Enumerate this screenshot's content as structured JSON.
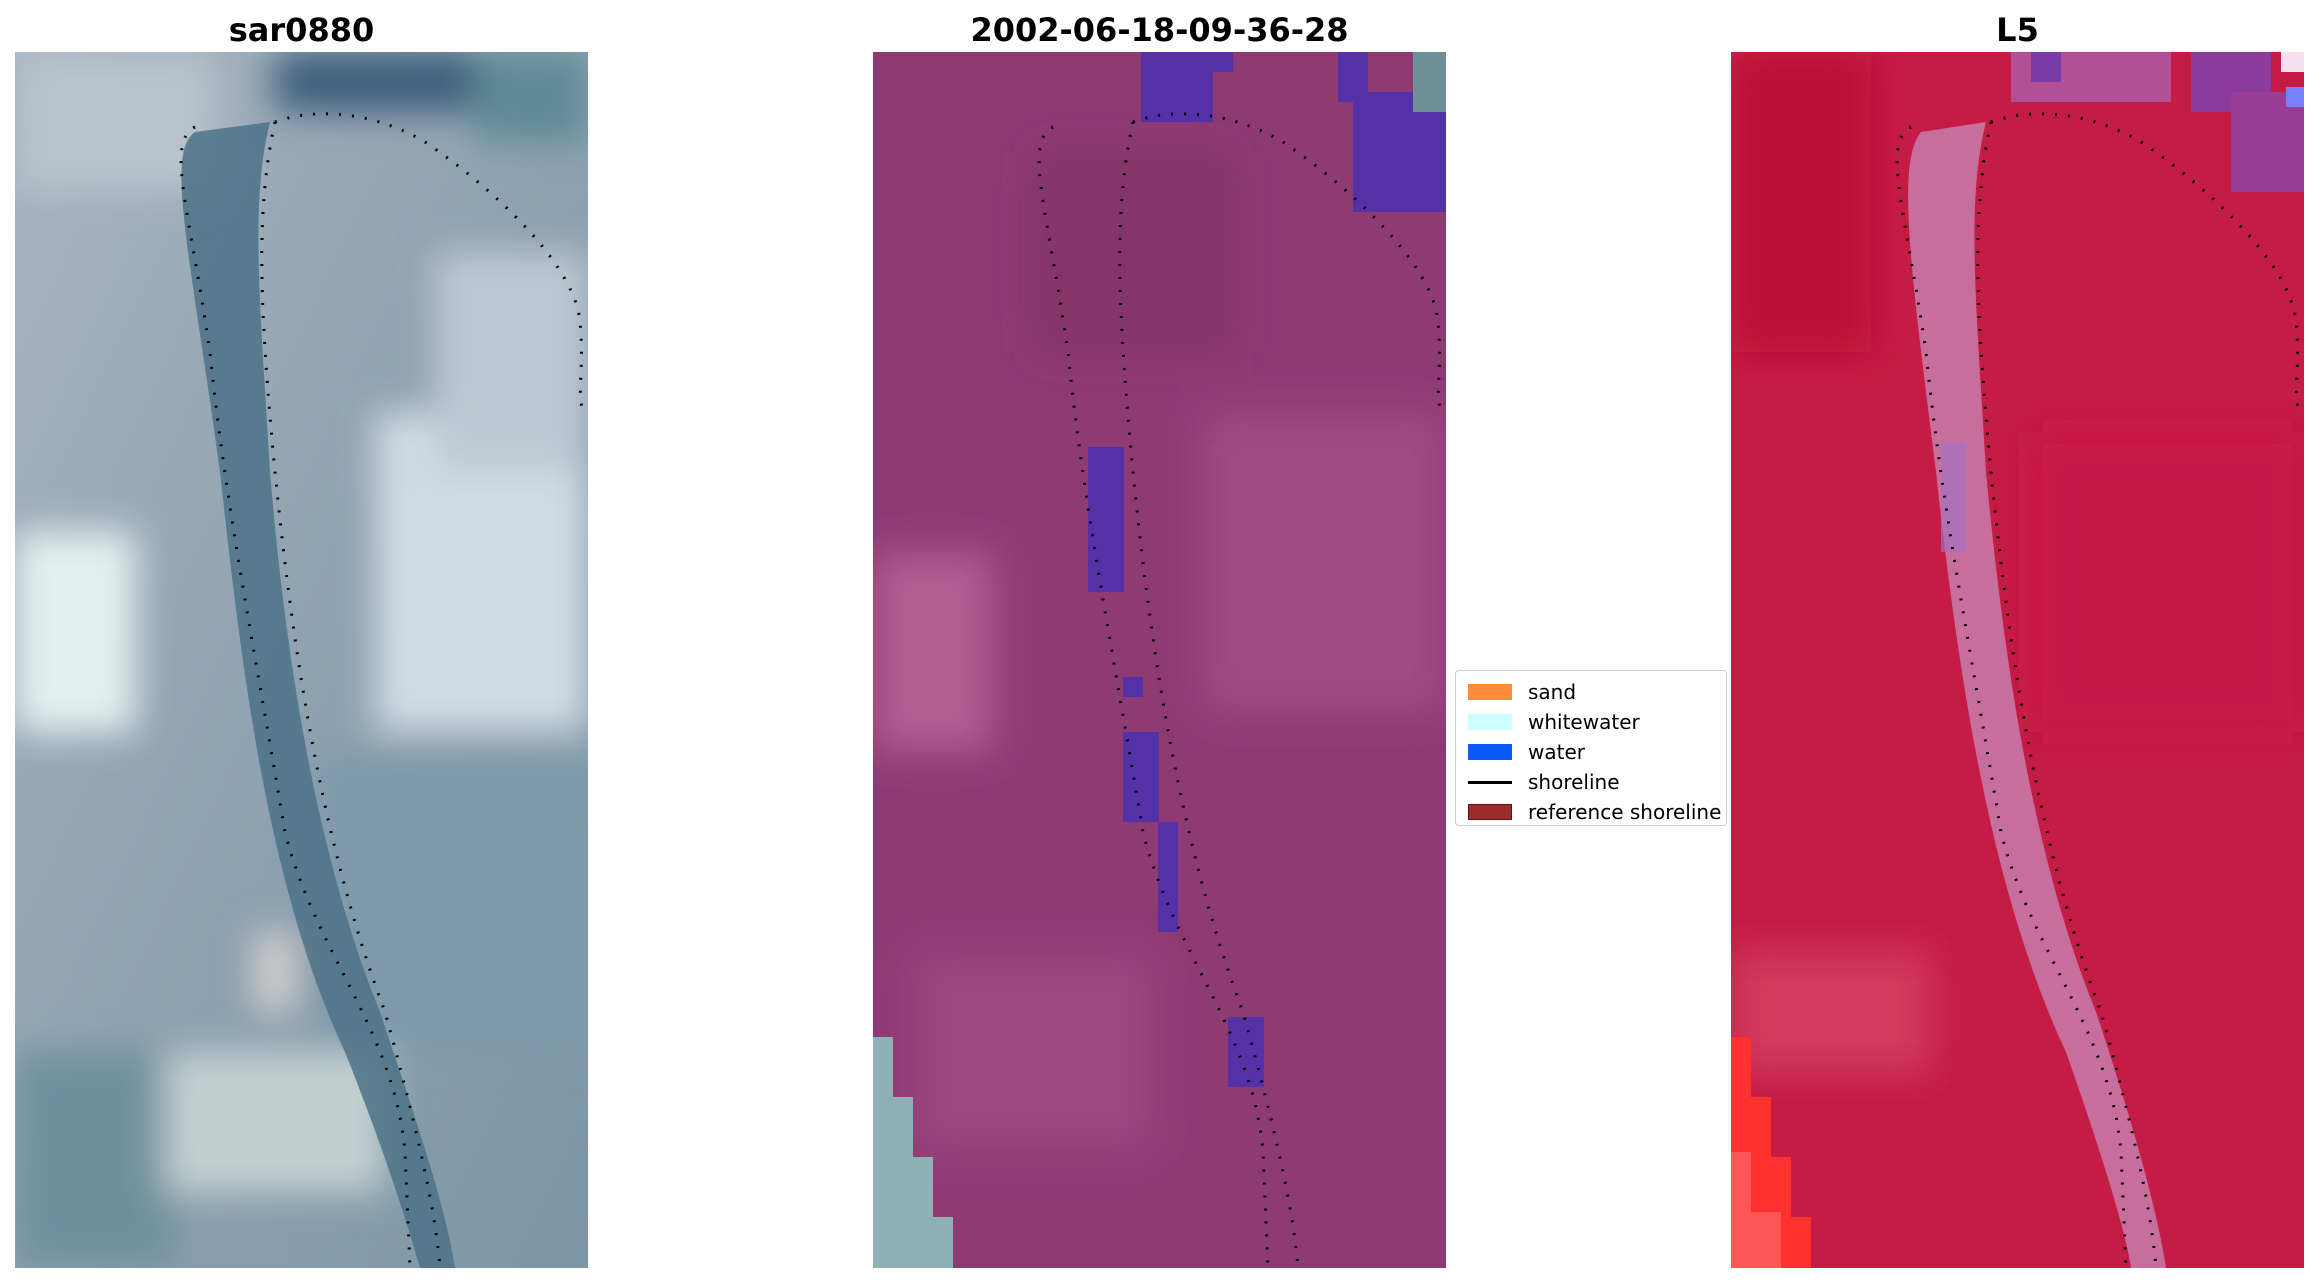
{
  "panels": [
    {
      "id": "rgb",
      "title": "sar0880"
    },
    {
      "id": "class",
      "title": "2002-06-18-09-36-28"
    },
    {
      "id": "index",
      "title": "L5"
    }
  ],
  "legend": {
    "items": [
      {
        "label": "sand",
        "color": "#ff8c3a",
        "kind": "patch"
      },
      {
        "label": "whitewater",
        "color": "#ccffff",
        "kind": "patch"
      },
      {
        "label": "water",
        "color": "#0a5af5",
        "kind": "patch"
      },
      {
        "label": "shoreline",
        "color": "#000000",
        "kind": "line"
      },
      {
        "label": "reference shoreline",
        "color": "#9b2a2a",
        "kind": "patch"
      }
    ]
  },
  "colors": {
    "rgb_base": "#8a9eab",
    "rgb_water": "#4f7387",
    "rgb_bright": "#d9e1e5",
    "class_base": "#8e3a73",
    "class_light": "#b35d93",
    "class_water": "#5531a8",
    "index_base": "#c41c45",
    "index_channel": "#c989b9",
    "index_red": "#ff2b2b",
    "shoreline": "#000000"
  }
}
